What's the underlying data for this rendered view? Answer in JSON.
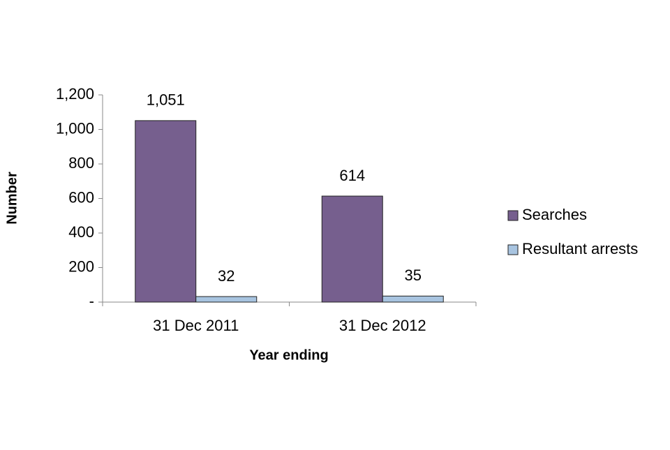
{
  "chart_data": {
    "type": "bar",
    "categories": [
      "31 Dec 2011",
      "31 Dec 2012"
    ],
    "series": [
      {
        "name": "Searches",
        "color": "#765f8e",
        "values": [
          1051,
          614
        ],
        "value_labels": [
          "1,051",
          "614"
        ]
      },
      {
        "name": "Resultant arrests",
        "color": "#a8c4e0",
        "values": [
          32,
          35
        ]
      }
    ],
    "ylim": [
      0,
      1200
    ],
    "yticks": [
      {
        "value": 0,
        "label": "-"
      },
      200,
      400,
      600,
      800,
      {
        "value": 1000,
        "label": "1,000"
      },
      {
        "value": 1200,
        "label": "1,200"
      }
    ],
    "y_label": "Number",
    "x_label": "Year ending",
    "legend": "right"
  }
}
